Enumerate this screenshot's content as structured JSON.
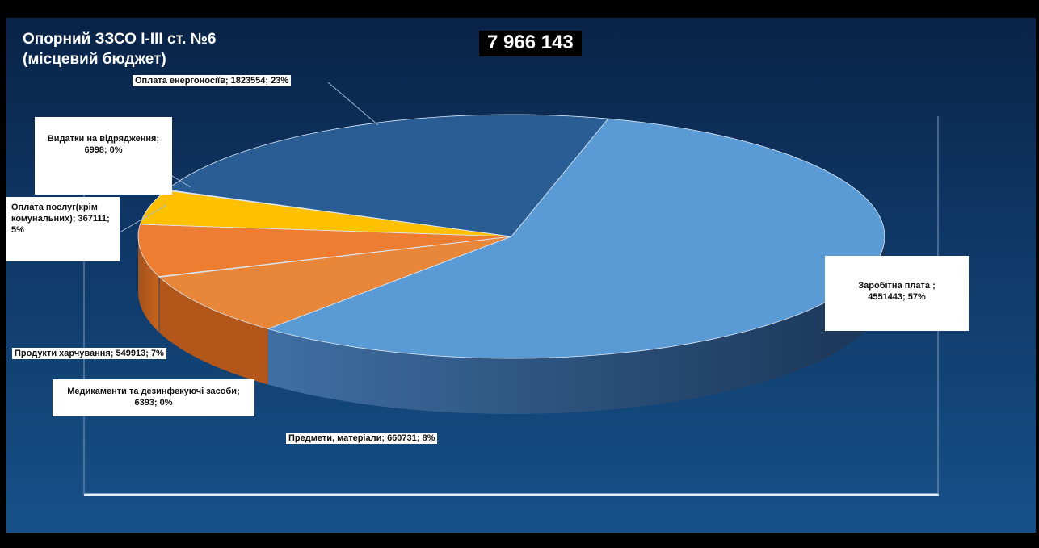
{
  "header": {
    "title": "Опорний ЗЗСО І-ІІІ ст. №6\n(місцевий бюджет)",
    "total": "7 966 143"
  },
  "colors": {
    "background_top": "#0a2346",
    "background_bottom": "#175088",
    "label_bg": "#ffffff"
  },
  "chart_data": {
    "type": "pie",
    "style": "3d-exploded-less",
    "slices": [
      {
        "name": "Заробітна плата",
        "value": 4551443,
        "percent": 57,
        "color": "#5b9bd5",
        "label": "Заробітна плата ; 4551443; 57%"
      },
      {
        "name": "Предмети, матеріали",
        "value": 660731,
        "percent": 8,
        "color": "#e8863a",
        "label": "Предмети, матеріали; 660731; 8%"
      },
      {
        "name": "Медикаменти та дезинфекуючі засоби",
        "value": 6393,
        "percent": 0,
        "color": "#c55a11",
        "label": "Медикаменти та дезинфекуючі засоби; 6393; 0%"
      },
      {
        "name": "Продукти харчування",
        "value": 549913,
        "percent": 7,
        "color": "#ed7d31",
        "label": "Продукти харчування; 549913; 7%"
      },
      {
        "name": "Оплата послуг(крім комунальних)",
        "value": 367111,
        "percent": 5,
        "color": "#ffc000",
        "label": "Оплата послуг(крім комунальних); 367111; 5%"
      },
      {
        "name": "Видатки на відрядження",
        "value": 6998,
        "percent": 0,
        "color": "#4472c4",
        "label": "Видатки на відрядження; 6998; 0%"
      },
      {
        "name": "Оплата енергоносіїв",
        "value": 1823554,
        "percent": 23,
        "color": "#2a5d94",
        "label": "Оплата енергоносіїв; 1823554; 23%"
      }
    ],
    "legend": "none",
    "data_labels": "callouts"
  },
  "labels": {
    "energy": "Оплата енергоносіїв; 1823554; 23%",
    "travel": "Видатки на відрядження; 6998; 0%",
    "services": "Оплата послуг(крім комунальних); 367111; 5%",
    "salary": "Заробітна плата ; 4551443; 57%",
    "food": "Продукти харчування; 549913; 7%",
    "meds": "Медикаменти та дезинфекуючі засоби; 6393; 0%",
    "materials": "Предмети, матеріали; 660731; 8%"
  }
}
